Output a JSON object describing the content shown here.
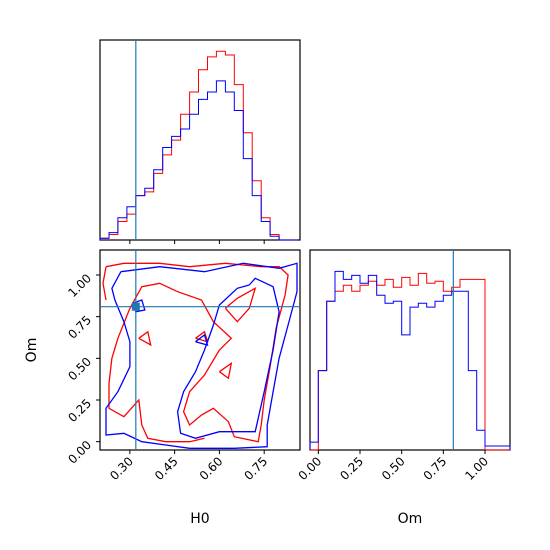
{
  "chart_data": {
    "type": "corner",
    "parameters": [
      "H0",
      "Om"
    ],
    "truths": {
      "H0": 0.32,
      "Om": 0.81
    },
    "colors": {
      "run_red": "#ff0000",
      "run_blue": "#0000ff",
      "truth": "#1f77b4"
    },
    "axes": {
      "H0": {
        "label": "H0",
        "range": [
          0.2,
          0.87
        ],
        "ticks": [
          0.3,
          0.45,
          0.6,
          0.75
        ],
        "tick_labels": [
          "0.30",
          "0.45",
          "0.60",
          "0.75"
        ]
      },
      "Om": {
        "label": "Om",
        "range": [
          -0.05,
          1.15
        ],
        "ticks": [
          0.0,
          0.25,
          0.5,
          0.75,
          1.0
        ],
        "tick_labels": [
          "0.00",
          "0.25",
          "0.50",
          "0.75",
          "1.00"
        ]
      }
    },
    "hist_H0": {
      "edges": [
        0.2,
        0.215,
        0.23,
        0.245,
        0.26,
        0.275,
        0.29,
        0.305,
        0.32,
        0.335,
        0.35,
        0.365,
        0.38,
        0.395,
        0.41,
        0.425,
        0.44,
        0.455,
        0.47,
        0.485,
        0.5,
        0.515,
        0.53,
        0.545,
        0.56,
        0.575,
        0.59,
        0.605,
        0.62,
        0.635,
        0.65,
        0.665,
        0.68,
        0.695,
        0.71,
        0.725,
        0.74,
        0.755,
        0.77,
        0.785,
        0.8,
        0.815,
        0.83,
        0.845,
        0.86
      ],
      "red": [
        0.1,
        0.1,
        0.3,
        0.3,
        1.0,
        1.0,
        1.4,
        1.4,
        2.4,
        2.4,
        2.6,
        2.6,
        3.6,
        3.6,
        4.6,
        4.6,
        5.4,
        5.4,
        6.8,
        6.8,
        8.0,
        8.0,
        9.2,
        9.2,
        9.9,
        9.9,
        10.2,
        10.2,
        10.0,
        10.0,
        8.4,
        8.4,
        5.8,
        5.8,
        3.2,
        3.2,
        1.2,
        1.2,
        0.3,
        0.3,
        0.0,
        0.0,
        0.0,
        0.0
      ],
      "blue": [
        0.1,
        0.1,
        0.4,
        0.4,
        1.2,
        1.2,
        1.8,
        1.8,
        2.4,
        2.4,
        2.8,
        2.8,
        3.8,
        3.8,
        5.0,
        5.0,
        5.6,
        5.6,
        6.0,
        6.0,
        6.8,
        6.8,
        7.6,
        7.6,
        8.0,
        8.0,
        8.6,
        8.6,
        8.0,
        8.0,
        7.0,
        7.0,
        4.4,
        4.4,
        2.4,
        2.4,
        1.0,
        1.0,
        0.2,
        0.2,
        0.0,
        0.0,
        0.0,
        0.0
      ]
    },
    "hist_Om": {
      "edges": [
        -0.05,
        0.0,
        0.05,
        0.1,
        0.15,
        0.2,
        0.25,
        0.3,
        0.35,
        0.4,
        0.45,
        0.5,
        0.55,
        0.6,
        0.65,
        0.7,
        0.75,
        0.8,
        0.85,
        0.9,
        0.95,
        1.0,
        1.05,
        1.1,
        1.15
      ],
      "red": [
        0.0,
        4.0,
        7.5,
        8.0,
        8.3,
        8.0,
        8.3,
        8.5,
        8.3,
        8.6,
        8.2,
        8.7,
        8.3,
        8.9,
        8.4,
        8.5,
        8.0,
        8.2,
        8.6,
        8.6,
        8.6,
        0.0,
        0.0,
        0.0
      ],
      "blue": [
        0.4,
        4.0,
        7.5,
        9.0,
        8.6,
        8.8,
        8.4,
        8.8,
        7.8,
        7.4,
        7.5,
        5.8,
        7.2,
        7.4,
        7.2,
        7.5,
        7.8,
        8.0,
        8.0,
        4.0,
        1.0,
        0.2,
        0.2,
        0.2
      ]
    },
    "contours_red": [
      [
        [
          0.22,
          1.05
        ],
        [
          0.28,
          1.07
        ],
        [
          0.4,
          1.07
        ],
        [
          0.5,
          1.05
        ],
        [
          0.62,
          1.07
        ],
        [
          0.74,
          1.05
        ],
        [
          0.8,
          1.05
        ],
        [
          0.83,
          1.0
        ],
        [
          0.82,
          0.88
        ],
        [
          0.79,
          0.68
        ],
        [
          0.77,
          0.45
        ],
        [
          0.75,
          0.25
        ],
        [
          0.74,
          0.1
        ],
        [
          0.73,
          0.0
        ],
        [
          0.65,
          0.03
        ],
        [
          0.63,
          0.12
        ],
        [
          0.58,
          0.2
        ],
        [
          0.54,
          0.16
        ],
        [
          0.5,
          0.1
        ],
        [
          0.48,
          0.18
        ],
        [
          0.5,
          0.3
        ],
        [
          0.55,
          0.4
        ],
        [
          0.6,
          0.55
        ],
        [
          0.64,
          0.62
        ],
        [
          0.58,
          0.72
        ],
        [
          0.54,
          0.85
        ],
        [
          0.46,
          0.9
        ],
        [
          0.4,
          0.95
        ],
        [
          0.34,
          0.93
        ],
        [
          0.3,
          0.8
        ],
        [
          0.26,
          0.62
        ],
        [
          0.24,
          0.5
        ],
        [
          0.23,
          0.35
        ],
        [
          0.23,
          0.2
        ],
        [
          0.28,
          0.15
        ],
        [
          0.33,
          0.25
        ],
        [
          0.34,
          0.1
        ],
        [
          0.36,
          0.02
        ],
        [
          0.42,
          0.0
        ],
        [
          0.5,
          0.0
        ],
        [
          0.55,
          0.02
        ]
      ],
      [
        [
          0.22,
          1.05
        ],
        [
          0.21,
          0.95
        ],
        [
          0.22,
          0.85
        ]
      ],
      [
        [
          0.62,
          0.8
        ],
        [
          0.66,
          0.86
        ],
        [
          0.72,
          0.92
        ],
        [
          0.7,
          0.8
        ],
        [
          0.66,
          0.72
        ],
        [
          0.62,
          0.8
        ]
      ],
      [
        [
          0.52,
          0.62
        ],
        [
          0.55,
          0.66
        ],
        [
          0.56,
          0.6
        ],
        [
          0.52,
          0.62
        ]
      ],
      [
        [
          0.33,
          0.62
        ],
        [
          0.36,
          0.66
        ],
        [
          0.37,
          0.58
        ],
        [
          0.33,
          0.62
        ]
      ],
      [
        [
          0.6,
          0.42
        ],
        [
          0.64,
          0.47
        ],
        [
          0.63,
          0.38
        ],
        [
          0.6,
          0.42
        ]
      ]
    ],
    "contours_blue": [
      [
        [
          0.27,
          1.02
        ],
        [
          0.4,
          1.05
        ],
        [
          0.55,
          1.02
        ],
        [
          0.68,
          1.07
        ],
        [
          0.8,
          1.04
        ],
        [
          0.86,
          1.07
        ],
        [
          0.86,
          0.9
        ],
        [
          0.83,
          0.7
        ],
        [
          0.8,
          0.5
        ],
        [
          0.78,
          0.3
        ],
        [
          0.76,
          0.1
        ],
        [
          0.76,
          -0.03
        ],
        [
          0.65,
          -0.04
        ],
        [
          0.5,
          -0.04
        ],
        [
          0.42,
          -0.02
        ],
        [
          0.34,
          0.0
        ],
        [
          0.28,
          0.05
        ],
        [
          0.22,
          0.04
        ],
        [
          0.22,
          0.2
        ],
        [
          0.26,
          0.3
        ],
        [
          0.3,
          0.45
        ],
        [
          0.3,
          0.6
        ],
        [
          0.28,
          0.72
        ],
        [
          0.25,
          0.85
        ],
        [
          0.24,
          0.92
        ],
        [
          0.27,
          1.02
        ]
      ],
      [
        [
          0.7,
          0.94
        ],
        [
          0.72,
          0.98
        ],
        [
          0.78,
          0.93
        ],
        [
          0.8,
          0.78
        ],
        [
          0.78,
          0.55
        ],
        [
          0.75,
          0.3
        ],
        [
          0.72,
          0.06
        ],
        [
          0.6,
          0.06
        ],
        [
          0.52,
          0.02
        ],
        [
          0.47,
          0.05
        ],
        [
          0.46,
          0.18
        ],
        [
          0.48,
          0.3
        ],
        [
          0.52,
          0.42
        ],
        [
          0.55,
          0.55
        ],
        [
          0.58,
          0.7
        ],
        [
          0.6,
          0.82
        ],
        [
          0.66,
          0.92
        ],
        [
          0.7,
          0.94
        ]
      ],
      [
        [
          0.31,
          0.83
        ],
        [
          0.34,
          0.85
        ],
        [
          0.35,
          0.79
        ],
        [
          0.32,
          0.78
        ],
        [
          0.31,
          0.83
        ]
      ],
      [
        [
          0.52,
          0.6
        ],
        [
          0.55,
          0.64
        ],
        [
          0.56,
          0.58
        ],
        [
          0.52,
          0.6
        ]
      ]
    ]
  }
}
